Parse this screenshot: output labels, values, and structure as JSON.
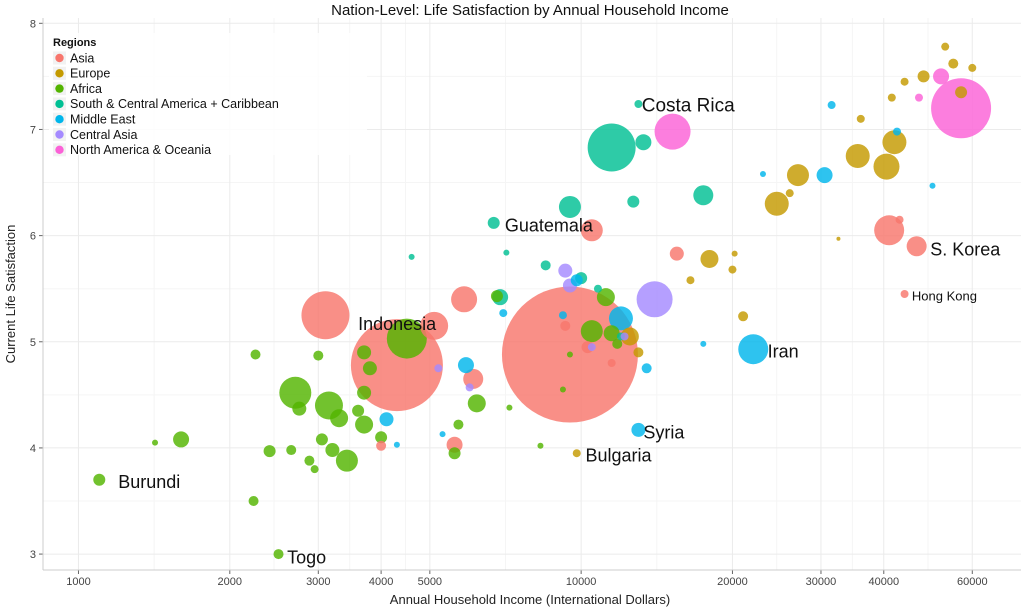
{
  "chart_data": {
    "type": "scatter",
    "title": "Nation-Level: Life Satisfaction by Annual Household Income",
    "xlabel": "Annual Household Income (International Dollars)",
    "ylabel": "Current Life Satisfaction",
    "x_scale": "log",
    "xlim": [
      850,
      75000
    ],
    "ylim": [
      2.85,
      8.05
    ],
    "x_ticks": [
      {
        "value": 1000,
        "label": "1000"
      },
      {
        "value": 2000,
        "label": "2000"
      },
      {
        "value": 3000,
        "label": "3000"
      },
      {
        "value": 4000,
        "label": "4000"
      },
      {
        "value": 5000,
        "label": "5000"
      },
      {
        "value": 10000,
        "label": "10000"
      },
      {
        "value": 20000,
        "label": "20000"
      },
      {
        "value": 30000,
        "label": "30000"
      },
      {
        "value": 40000,
        "label": "40000"
      },
      {
        "value": 60000,
        "label": "60000"
      }
    ],
    "y_ticks": [
      {
        "value": 3,
        "label": "3"
      },
      {
        "value": 4,
        "label": "4"
      },
      {
        "value": 5,
        "label": "5"
      },
      {
        "value": 6,
        "label": "6"
      },
      {
        "value": 7,
        "label": "7"
      },
      {
        "value": 8,
        "label": "8"
      }
    ],
    "grid": true,
    "legend_position": "top-left",
    "legend_title": "Regions",
    "regions": [
      {
        "name": "Asia",
        "color": "#f8766d"
      },
      {
        "name": "Europe",
        "color": "#c49a00"
      },
      {
        "name": "Africa",
        "color": "#53b400"
      },
      {
        "name": "South & Central America + Caribbean",
        "color": "#00c094"
      },
      {
        "name": "Middle East",
        "color": "#00b6eb"
      },
      {
        "name": "Central Asia",
        "color": "#a58aff"
      },
      {
        "name": "North America & Oceania",
        "color": "#fb61d7"
      }
    ],
    "points": [
      {
        "region": "Asia",
        "x": 9500,
        "y": 4.88,
        "r": 68
      },
      {
        "region": "Asia",
        "x": 4300,
        "y": 4.78,
        "r": 46
      },
      {
        "region": "Asia",
        "x": 3100,
        "y": 5.25,
        "r": 24
      },
      {
        "region": "Asia",
        "x": 5100,
        "y": 5.15,
        "r": 14
      },
      {
        "region": "Asia",
        "x": 5850,
        "y": 5.4,
        "r": 13
      },
      {
        "region": "Asia",
        "x": 10500,
        "y": 6.05,
        "r": 11
      },
      {
        "region": "Asia",
        "x": 6100,
        "y": 4.65,
        "r": 10
      },
      {
        "region": "Asia",
        "x": 5600,
        "y": 4.03,
        "r": 8
      },
      {
        "region": "Asia",
        "x": 15500,
        "y": 5.83,
        "r": 7
      },
      {
        "region": "Asia",
        "x": 10300,
        "y": 4.95,
        "r": 6
      },
      {
        "region": "Asia",
        "x": 9300,
        "y": 5.15,
        "r": 5
      },
      {
        "region": "Asia",
        "x": 11500,
        "y": 4.8,
        "r": 4
      },
      {
        "region": "Asia",
        "x": 4000,
        "y": 4.02,
        "r": 5
      },
      {
        "region": "Asia",
        "x": 41000,
        "y": 6.05,
        "r": 15
      },
      {
        "region": "Asia",
        "x": 46500,
        "y": 5.9,
        "r": 10
      },
      {
        "region": "Asia",
        "x": 44000,
        "y": 5.45,
        "r": 4
      },
      {
        "region": "Asia",
        "x": 43000,
        "y": 6.15,
        "r": 4
      },
      {
        "region": "Europe",
        "x": 9800,
        "y": 3.95,
        "r": 4
      },
      {
        "region": "Europe",
        "x": 12500,
        "y": 5.05,
        "r": 9
      },
      {
        "region": "Europe",
        "x": 13000,
        "y": 4.9,
        "r": 5
      },
      {
        "region": "Europe",
        "x": 16500,
        "y": 5.58,
        "r": 4
      },
      {
        "region": "Europe",
        "x": 18000,
        "y": 5.78,
        "r": 9
      },
      {
        "region": "Europe",
        "x": 20000,
        "y": 5.68,
        "r": 4
      },
      {
        "region": "Europe",
        "x": 20200,
        "y": 5.83,
        "r": 3
      },
      {
        "region": "Europe",
        "x": 21000,
        "y": 5.24,
        "r": 5
      },
      {
        "region": "Europe",
        "x": 24500,
        "y": 6.3,
        "r": 12
      },
      {
        "region": "Europe",
        "x": 27000,
        "y": 6.57,
        "r": 11
      },
      {
        "region": "Europe",
        "x": 26000,
        "y": 6.4,
        "r": 4
      },
      {
        "region": "Europe",
        "x": 32500,
        "y": 5.97,
        "r": 2
      },
      {
        "region": "Europe",
        "x": 35500,
        "y": 6.75,
        "r": 12
      },
      {
        "region": "Europe",
        "x": 40500,
        "y": 6.65,
        "r": 13
      },
      {
        "region": "Europe",
        "x": 42000,
        "y": 6.88,
        "r": 12
      },
      {
        "region": "Europe",
        "x": 36000,
        "y": 7.1,
        "r": 4
      },
      {
        "region": "Europe",
        "x": 41500,
        "y": 7.3,
        "r": 4
      },
      {
        "region": "Europe",
        "x": 44000,
        "y": 7.45,
        "r": 4
      },
      {
        "region": "Europe",
        "x": 48000,
        "y": 7.5,
        "r": 6
      },
      {
        "region": "Europe",
        "x": 53000,
        "y": 7.78,
        "r": 4
      },
      {
        "region": "Europe",
        "x": 55000,
        "y": 7.62,
        "r": 5
      },
      {
        "region": "Europe",
        "x": 60000,
        "y": 7.58,
        "r": 4
      },
      {
        "region": "Europe",
        "x": 57000,
        "y": 7.35,
        "r": 6
      },
      {
        "region": "Africa",
        "x": 1100,
        "y": 3.7,
        "r": 6
      },
      {
        "region": "Africa",
        "x": 1420,
        "y": 4.05,
        "r": 3
      },
      {
        "region": "Africa",
        "x": 1600,
        "y": 4.08,
        "r": 8
      },
      {
        "region": "Africa",
        "x": 2230,
        "y": 3.5,
        "r": 5
      },
      {
        "region": "Africa",
        "x": 2250,
        "y": 4.88,
        "r": 5
      },
      {
        "region": "Africa",
        "x": 2400,
        "y": 3.97,
        "r": 6
      },
      {
        "region": "Africa",
        "x": 2500,
        "y": 3.0,
        "r": 5
      },
      {
        "region": "Africa",
        "x": 2650,
        "y": 3.98,
        "r": 5
      },
      {
        "region": "Africa",
        "x": 2700,
        "y": 4.52,
        "r": 16
      },
      {
        "region": "Africa",
        "x": 2750,
        "y": 4.37,
        "r": 7
      },
      {
        "region": "Africa",
        "x": 2880,
        "y": 3.88,
        "r": 5
      },
      {
        "region": "Africa",
        "x": 2950,
        "y": 3.8,
        "r": 4
      },
      {
        "region": "Africa",
        "x": 3000,
        "y": 4.87,
        "r": 5
      },
      {
        "region": "Africa",
        "x": 3050,
        "y": 4.08,
        "r": 6
      },
      {
        "region": "Africa",
        "x": 3150,
        "y": 4.4,
        "r": 14
      },
      {
        "region": "Africa",
        "x": 3200,
        "y": 3.98,
        "r": 7
      },
      {
        "region": "Africa",
        "x": 3300,
        "y": 4.28,
        "r": 9
      },
      {
        "region": "Africa",
        "x": 3420,
        "y": 3.88,
        "r": 11
      },
      {
        "region": "Africa",
        "x": 3600,
        "y": 4.35,
        "r": 6
      },
      {
        "region": "Africa",
        "x": 3700,
        "y": 4.22,
        "r": 9
      },
      {
        "region": "Africa",
        "x": 3700,
        "y": 4.52,
        "r": 7
      },
      {
        "region": "Africa",
        "x": 3700,
        "y": 4.9,
        "r": 7
      },
      {
        "region": "Africa",
        "x": 3800,
        "y": 4.75,
        "r": 7
      },
      {
        "region": "Africa",
        "x": 4000,
        "y": 4.1,
        "r": 6
      },
      {
        "region": "Africa",
        "x": 4500,
        "y": 5.03,
        "r": 20
      },
      {
        "region": "Africa",
        "x": 5600,
        "y": 3.95,
        "r": 6
      },
      {
        "region": "Africa",
        "x": 5700,
        "y": 4.22,
        "r": 5
      },
      {
        "region": "Africa",
        "x": 6200,
        "y": 4.42,
        "r": 9
      },
      {
        "region": "Africa",
        "x": 6800,
        "y": 5.43,
        "r": 6
      },
      {
        "region": "Africa",
        "x": 7200,
        "y": 4.38,
        "r": 3
      },
      {
        "region": "Africa",
        "x": 8300,
        "y": 4.02,
        "r": 3
      },
      {
        "region": "Africa",
        "x": 9200,
        "y": 4.55,
        "r": 3
      },
      {
        "region": "Africa",
        "x": 9500,
        "y": 4.88,
        "r": 3
      },
      {
        "region": "Africa",
        "x": 10500,
        "y": 5.1,
        "r": 11
      },
      {
        "region": "Africa",
        "x": 11200,
        "y": 5.42,
        "r": 9
      },
      {
        "region": "Africa",
        "x": 11500,
        "y": 5.08,
        "r": 8
      },
      {
        "region": "Africa",
        "x": 11800,
        "y": 4.98,
        "r": 5
      },
      {
        "region": "South & Central America + Caribbean",
        "x": 6700,
        "y": 6.12,
        "r": 6
      },
      {
        "region": "South & Central America + Caribbean",
        "x": 7100,
        "y": 5.84,
        "r": 3
      },
      {
        "region": "South & Central America + Caribbean",
        "x": 4600,
        "y": 5.8,
        "r": 3
      },
      {
        "region": "South & Central America + Caribbean",
        "x": 6900,
        "y": 5.42,
        "r": 8
      },
      {
        "region": "South & Central America + Caribbean",
        "x": 8500,
        "y": 5.72,
        "r": 5
      },
      {
        "region": "South & Central America + Caribbean",
        "x": 9500,
        "y": 6.27,
        "r": 11
      },
      {
        "region": "South & Central America + Caribbean",
        "x": 11500,
        "y": 6.83,
        "r": 24
      },
      {
        "region": "South & Central America + Caribbean",
        "x": 13000,
        "y": 7.24,
        "r": 4
      },
      {
        "region": "South & Central America + Caribbean",
        "x": 13300,
        "y": 6.88,
        "r": 8
      },
      {
        "region": "South & Central America + Caribbean",
        "x": 12700,
        "y": 6.32,
        "r": 6
      },
      {
        "region": "South & Central America + Caribbean",
        "x": 10000,
        "y": 5.6,
        "r": 6
      },
      {
        "region": "South & Central America + Caribbean",
        "x": 10800,
        "y": 5.5,
        "r": 4
      },
      {
        "region": "South & Central America + Caribbean",
        "x": 12000,
        "y": 5.05,
        "r": 4
      },
      {
        "region": "South & Central America + Caribbean",
        "x": 17500,
        "y": 6.38,
        "r": 10
      },
      {
        "region": "Middle East",
        "x": 4100,
        "y": 4.27,
        "r": 7
      },
      {
        "region": "Middle East",
        "x": 4300,
        "y": 4.03,
        "r": 3
      },
      {
        "region": "Middle East",
        "x": 5300,
        "y": 4.13,
        "r": 3
      },
      {
        "region": "Middle East",
        "x": 5900,
        "y": 4.78,
        "r": 8
      },
      {
        "region": "Middle East",
        "x": 7000,
        "y": 5.27,
        "r": 4
      },
      {
        "region": "Middle East",
        "x": 9200,
        "y": 5.25,
        "r": 4
      },
      {
        "region": "Middle East",
        "x": 9800,
        "y": 5.58,
        "r": 6
      },
      {
        "region": "Middle East",
        "x": 12000,
        "y": 5.22,
        "r": 12
      },
      {
        "region": "Middle East",
        "x": 13000,
        "y": 4.17,
        "r": 7
      },
      {
        "region": "Middle East",
        "x": 13500,
        "y": 4.75,
        "r": 5
      },
      {
        "region": "Middle East",
        "x": 17500,
        "y": 4.98,
        "r": 3
      },
      {
        "region": "Middle East",
        "x": 22000,
        "y": 4.93,
        "r": 15
      },
      {
        "region": "Middle East",
        "x": 23000,
        "y": 6.58,
        "r": 3
      },
      {
        "region": "Middle East",
        "x": 30500,
        "y": 6.57,
        "r": 8
      },
      {
        "region": "Middle East",
        "x": 31500,
        "y": 7.23,
        "r": 4
      },
      {
        "region": "Middle East",
        "x": 42500,
        "y": 6.98,
        "r": 4
      },
      {
        "region": "Middle East",
        "x": 50000,
        "y": 6.47,
        "r": 3
      },
      {
        "region": "Central Asia",
        "x": 5200,
        "y": 4.75,
        "r": 4
      },
      {
        "region": "Central Asia",
        "x": 6000,
        "y": 4.57,
        "r": 4
      },
      {
        "region": "Central Asia",
        "x": 9300,
        "y": 5.67,
        "r": 7
      },
      {
        "region": "Central Asia",
        "x": 9500,
        "y": 5.53,
        "r": 7
      },
      {
        "region": "Central Asia",
        "x": 10500,
        "y": 4.95,
        "r": 4
      },
      {
        "region": "Central Asia",
        "x": 12200,
        "y": 5.05,
        "r": 4
      },
      {
        "region": "Central Asia",
        "x": 14000,
        "y": 5.4,
        "r": 18
      },
      {
        "region": "North America & Oceania",
        "x": 15200,
        "y": 6.98,
        "r": 18
      },
      {
        "region": "North America & Oceania",
        "x": 47000,
        "y": 7.3,
        "r": 4
      },
      {
        "region": "North America & Oceania",
        "x": 52000,
        "y": 7.5,
        "r": 8
      },
      {
        "region": "North America & Oceania",
        "x": 57000,
        "y": 7.2,
        "r": 30
      }
    ],
    "annotations": [
      {
        "text": "Costa Rica",
        "x": 13200,
        "y": 7.23,
        "size": 19
      },
      {
        "text": "Guatemala",
        "x": 7050,
        "y": 6.1,
        "size": 18
      },
      {
        "text": "S. Korea",
        "x": 49500,
        "y": 5.87,
        "size": 18
      },
      {
        "text": "Hong Kong",
        "x": 45500,
        "y": 5.43,
        "size": 13
      },
      {
        "text": "Indonesia",
        "x": 3600,
        "y": 5.17,
        "size": 18
      },
      {
        "text": "Iran",
        "x": 23500,
        "y": 4.91,
        "size": 18
      },
      {
        "text": "Syria",
        "x": 13300,
        "y": 4.15,
        "size": 18
      },
      {
        "text": "Bulgaria",
        "x": 10200,
        "y": 3.93,
        "size": 18
      },
      {
        "text": "Burundi",
        "x": 1200,
        "y": 3.68,
        "size": 18
      },
      {
        "text": "Togo",
        "x": 2600,
        "y": 2.97,
        "size": 18
      }
    ]
  }
}
